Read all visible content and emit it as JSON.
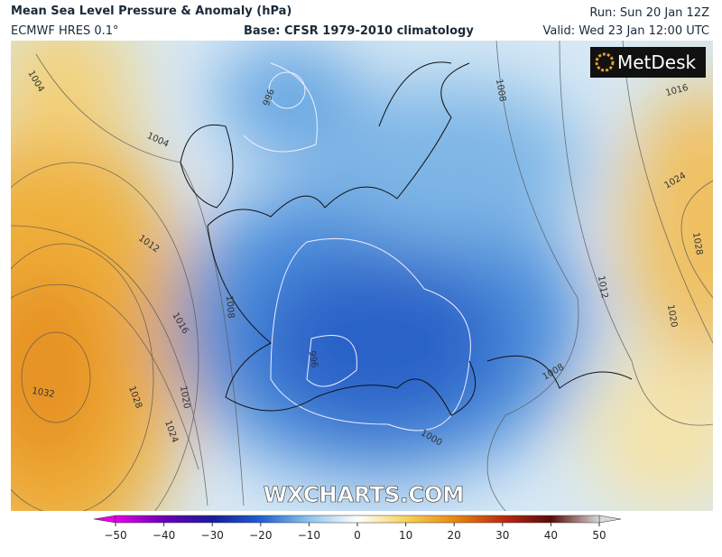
{
  "header": {
    "title": "Mean Sea Level Pressure & Anomaly (hPa)",
    "model": "ECMWF HRES 0.1°",
    "base": "Base: CFSR 1979-2010 climatology",
    "run": "Run: Sun 20 Jan 12Z",
    "valid": "Valid: Wed 23 Jan 12:00 UTC"
  },
  "logo": "MetDesk",
  "watermark": "WXCHARTS.COM",
  "isobar_labels": [
    "1004",
    "996",
    "1004",
    "1008",
    "1016",
    "1024",
    "1012",
    "1028",
    "1012",
    "1008",
    "1016",
    "1020",
    "996",
    "1032",
    "1028",
    "1020",
    "1024",
    "1000",
    "1008"
  ],
  "colorbar": {
    "range": [
      -50,
      50
    ],
    "ticks": [
      {
        "value": -50,
        "label": "−50"
      },
      {
        "value": -40,
        "label": "−40"
      },
      {
        "value": -30,
        "label": "−30"
      },
      {
        "value": -20,
        "label": "−20"
      },
      {
        "value": -10,
        "label": "−10"
      },
      0,
      10,
      20,
      30,
      40,
      50
    ]
  }
}
